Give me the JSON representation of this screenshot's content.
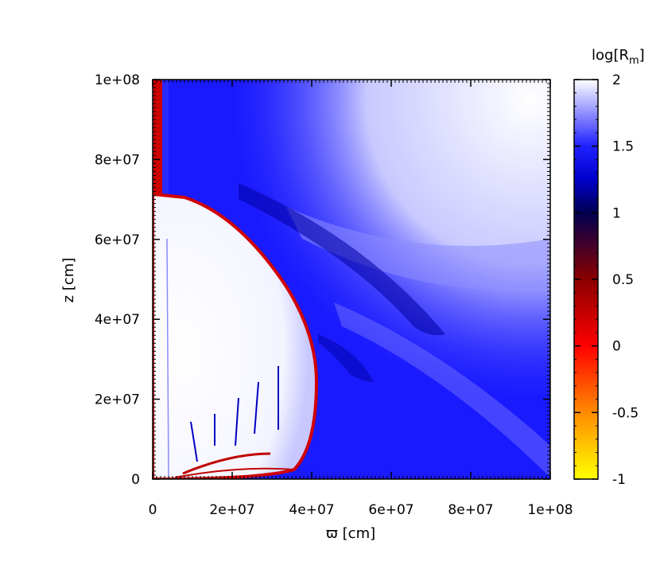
{
  "chart_data": {
    "type": "heatmap",
    "xlabel": "ϖ [cm]",
    "ylabel": "z [cm]",
    "xlim": [
      0,
      100000000
    ],
    "ylim": [
      0,
      100000000
    ],
    "x_ticks": [
      {
        "value": 0,
        "label": "0"
      },
      {
        "value": 20000000,
        "label": "2e+07"
      },
      {
        "value": 40000000,
        "label": "4e+07"
      },
      {
        "value": 60000000,
        "label": "6e+07"
      },
      {
        "value": 80000000,
        "label": "8e+07"
      },
      {
        "value": 100000000,
        "label": "1e+08"
      }
    ],
    "y_ticks": [
      {
        "value": 0,
        "label": "0"
      },
      {
        "value": 20000000,
        "label": "2e+07"
      },
      {
        "value": 40000000,
        "label": "4e+07"
      },
      {
        "value": 60000000,
        "label": "6e+07"
      },
      {
        "value": 80000000,
        "label": "8e+07"
      },
      {
        "value": 100000000,
        "label": "1e+08"
      }
    ],
    "colorbar": {
      "title_main": "log[R",
      "title_sub": "m",
      "title_end": "]",
      "range": [
        -1,
        2
      ],
      "ticks": [
        {
          "value": -1,
          "label": "-1"
        },
        {
          "value": -0.5,
          "label": "-0.5"
        },
        {
          "value": 0,
          "label": "0"
        },
        {
          "value": 0.5,
          "label": "0.5"
        },
        {
          "value": 1,
          "label": "1"
        },
        {
          "value": 1.5,
          "label": "1.5"
        },
        {
          "value": 2,
          "label": "2"
        }
      ],
      "colors": [
        "#ffff00",
        "#ff8c00",
        "#ff0000",
        "#8b0000",
        "#000050",
        "#0000ff",
        "#ffffff"
      ]
    },
    "features": {
      "cavity_boundary": [
        [
          0,
          71000000
        ],
        [
          20000000,
          62000000
        ],
        [
          32000000,
          48000000
        ],
        [
          40000000,
          35000000
        ],
        [
          41000000,
          20000000
        ],
        [
          38000000,
          5000000
        ],
        [
          30000000,
          0
        ]
      ],
      "axis_jet_x_max": 2000000,
      "axis_jet_z_min": 71000000
    }
  },
  "colors": {
    "background": "#0000ff",
    "outer_field": "#1a1aff",
    "cavity_interior": "#ffffff",
    "cavity_boundary": "#d00000",
    "axis_jet": "#cc0000"
  }
}
